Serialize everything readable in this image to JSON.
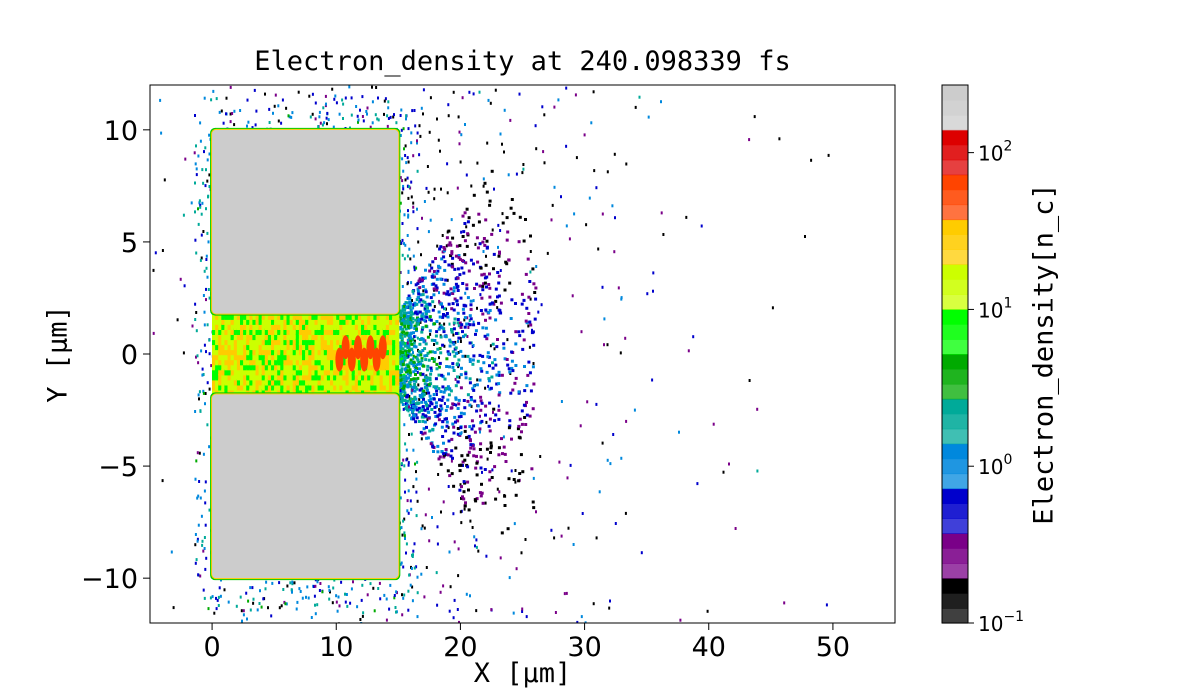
{
  "chart_data": {
    "type": "heatmap",
    "title": "Electron_density at 240.098339 fs",
    "xlabel": "X [μm]",
    "ylabel": "Y [μm]",
    "xlim": [
      -5,
      55
    ],
    "ylim": [
      -12,
      12
    ],
    "x_ticks": [
      0,
      10,
      20,
      30,
      40,
      50
    ],
    "y_ticks": [
      -10,
      -5,
      0,
      5,
      10
    ],
    "colorbar": {
      "label": "Electron_density[n_c]",
      "scale": "log",
      "range": [
        0.1,
        270
      ],
      "ticks": [
        {
          "value": 0.1,
          "base": "10",
          "exp": "−1"
        },
        {
          "value": 1,
          "base": "10",
          "exp": "0"
        },
        {
          "value": 10,
          "base": "10",
          "exp": "1"
        },
        {
          "value": 100,
          "base": "10",
          "exp": "2"
        }
      ],
      "colormap": "nipy_spectral",
      "colors": [
        "#000000",
        "#7a0088",
        "#0000cc",
        "#0088dd",
        "#00aa99",
        "#00aa00",
        "#00ff00",
        "#ccff00",
        "#ffcc00",
        "#ff4400",
        "#dd0000",
        "#cccccc"
      ]
    },
    "regions": [
      {
        "name": "upper-block",
        "x": [
          0,
          15
        ],
        "y": [
          1.8,
          10
        ],
        "density": 150
      },
      {
        "name": "lower-block",
        "x": [
          0,
          15
        ],
        "y": [
          -10,
          -1.8
        ],
        "density": 150
      },
      {
        "name": "channel",
        "x": [
          0,
          15
        ],
        "y": [
          -1.8,
          1.8
        ],
        "density": 15
      },
      {
        "name": "hot-spots",
        "x": [
          10,
          14
        ],
        "y": [
          -0.6,
          0.6
        ],
        "density": 70
      },
      {
        "name": "exit-plume",
        "x": [
          15,
          22
        ],
        "y": [
          -3,
          3
        ],
        "density": 3
      },
      {
        "name": "sparse-electrons",
        "x": [
          -5,
          50
        ],
        "y": [
          -12,
          12
        ],
        "density": 0.5
      }
    ]
  }
}
